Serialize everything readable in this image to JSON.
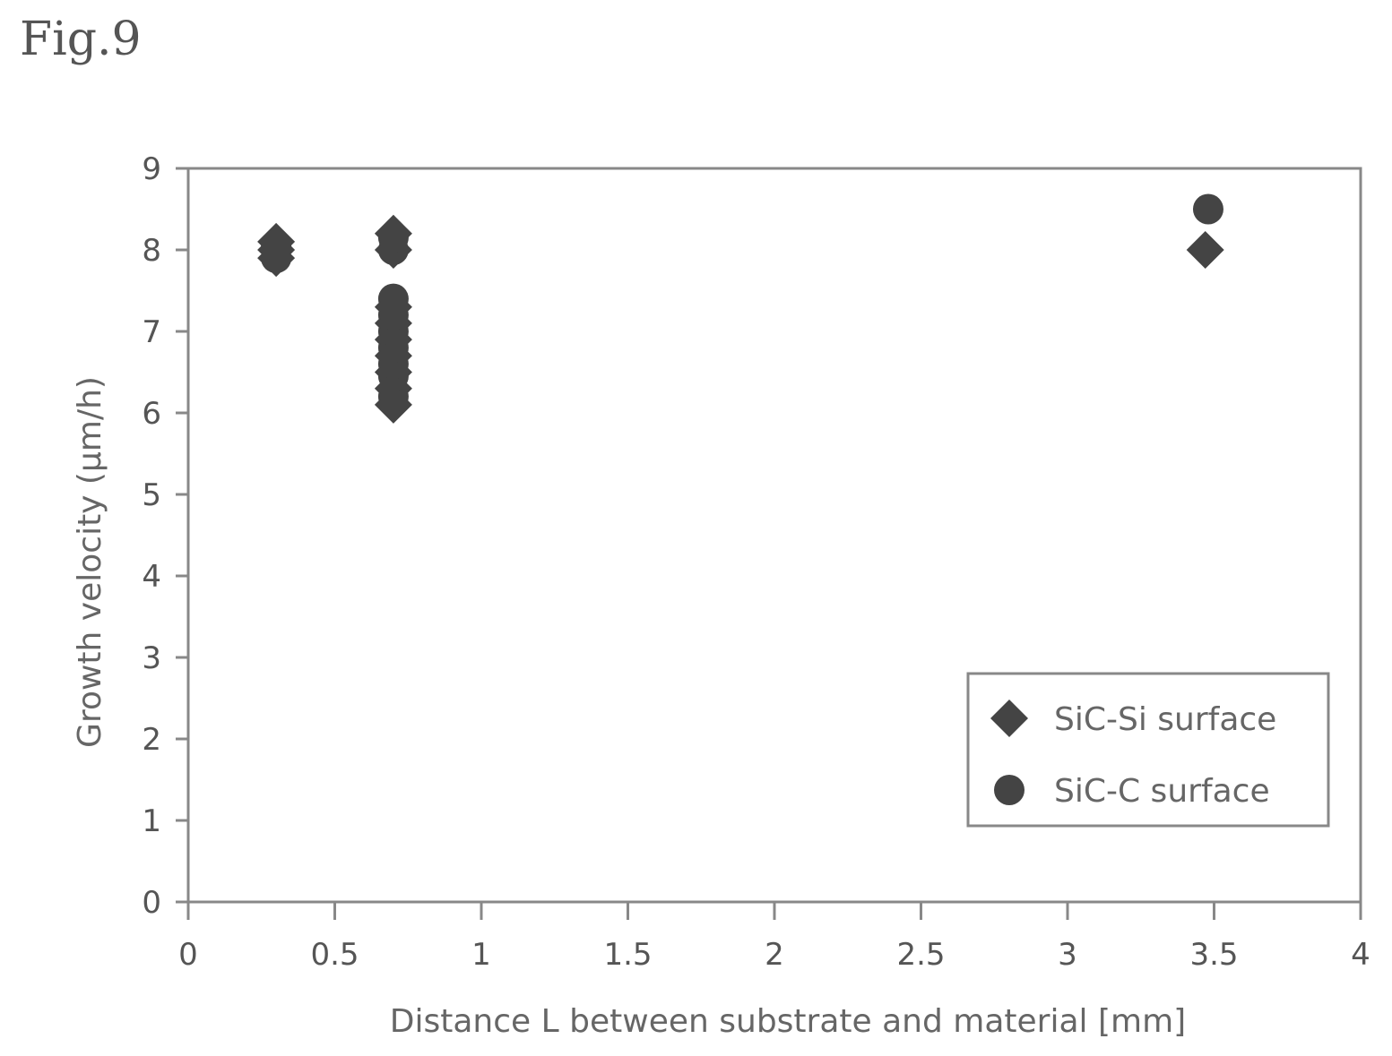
{
  "figure_label": "Fig.9",
  "chart_data": {
    "type": "scatter",
    "xlabel": "Distance L between substrate and material [mm]",
    "ylabel": "Growth velocity (μm/h)",
    "xlim": [
      0,
      4
    ],
    "ylim": [
      0,
      9
    ],
    "xticks": [
      "0",
      "0.5",
      "1",
      "1.5",
      "2",
      "2.5",
      "3",
      "3.5",
      "4"
    ],
    "yticks": [
      "0",
      "1",
      "2",
      "3",
      "4",
      "5",
      "6",
      "7",
      "8",
      "9"
    ],
    "grid": false,
    "legend_position": "bottom-right",
    "colors": {
      "marker": "#444444",
      "axis": "#888888"
    },
    "series": [
      {
        "name": "SiC-Si surface",
        "marker": "diamond",
        "points": [
          {
            "x": 0.3,
            "y": 7.9
          },
          {
            "x": 0.3,
            "y": 8.0
          },
          {
            "x": 0.3,
            "y": 8.1
          },
          {
            "x": 0.7,
            "y": 6.1
          },
          {
            "x": 0.7,
            "y": 6.3
          },
          {
            "x": 0.7,
            "y": 6.5
          },
          {
            "x": 0.7,
            "y": 6.7
          },
          {
            "x": 0.7,
            "y": 6.9
          },
          {
            "x": 0.7,
            "y": 7.1
          },
          {
            "x": 0.7,
            "y": 7.3
          },
          {
            "x": 0.7,
            "y": 8.0
          },
          {
            "x": 0.7,
            "y": 8.2
          },
          {
            "x": 3.47,
            "y": 8.0
          }
        ]
      },
      {
        "name": "SiC-C surface",
        "marker": "circle",
        "points": [
          {
            "x": 0.3,
            "y": 7.9
          },
          {
            "x": 0.3,
            "y": 8.05
          },
          {
            "x": 0.7,
            "y": 6.2
          },
          {
            "x": 0.7,
            "y": 6.45
          },
          {
            "x": 0.7,
            "y": 6.6
          },
          {
            "x": 0.7,
            "y": 6.8
          },
          {
            "x": 0.7,
            "y": 7.0
          },
          {
            "x": 0.7,
            "y": 7.2
          },
          {
            "x": 0.7,
            "y": 7.4
          },
          {
            "x": 0.7,
            "y": 8.0
          },
          {
            "x": 0.7,
            "y": 8.15
          },
          {
            "x": 3.48,
            "y": 8.5
          }
        ]
      }
    ]
  }
}
